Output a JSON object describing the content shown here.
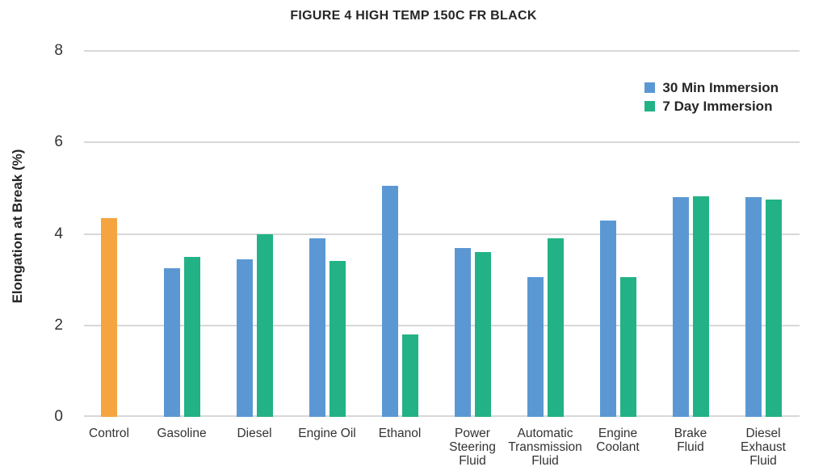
{
  "chart_data": {
    "type": "bar",
    "title": "FIGURE 4 HIGH TEMP 150C FR BLACK",
    "xlabel": "",
    "ylabel": "Elongation at Break (%)",
    "ylim": [
      0,
      8
    ],
    "yticks": [
      0,
      2,
      4,
      6,
      8
    ],
    "grid": true,
    "legend_position": "top-right",
    "categories": [
      "Control",
      "Gasoline",
      "Diesel",
      "Engine Oil",
      "Ethanol",
      "Power Steering Fluid",
      "Automatic Transmission Fluid",
      "Engine Coolant",
      "Brake Fluid",
      "Diesel Exhaust Fluid"
    ],
    "tick_labels": [
      "Control",
      "Gasoline",
      "Diesel",
      "Engine Oil",
      "Ethanol",
      "Power\nSteering\nFluid",
      "Automatic\nTransmission\nFluid",
      "Engine\nCoolant",
      "Brake\nFluid",
      "Diesel\nExhaust\nFluid"
    ],
    "control_bar": {
      "category": "Control",
      "value": 4.35,
      "color": "#F5A440"
    },
    "series": [
      {
        "name": "30 Min Immersion",
        "color": "#5B98D3",
        "values": [
          null,
          3.25,
          3.45,
          3.9,
          5.05,
          3.7,
          3.05,
          4.3,
          4.8,
          4.8
        ]
      },
      {
        "name": "7 Day Immersion",
        "color": "#22B286",
        "values": [
          null,
          3.5,
          4.0,
          3.4,
          1.8,
          3.6,
          3.9,
          3.05,
          4.82,
          4.75
        ]
      }
    ],
    "colors": {
      "gridline": "#D8D8D8",
      "title_text": "#262626",
      "tick_text": "#333333"
    }
  }
}
